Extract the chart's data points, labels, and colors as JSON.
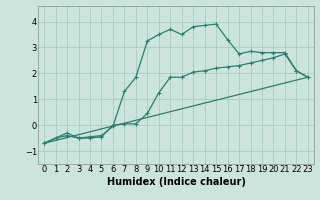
{
  "title": "",
  "xlabel": "Humidex (Indice chaleur)",
  "bg_color": "#cce5dc",
  "grid_color": "#b0cfc5",
  "line_color": "#2e7d6e",
  "xlim": [
    -0.5,
    23.5
  ],
  "ylim": [
    -1.5,
    4.6
  ],
  "xticks": [
    0,
    1,
    2,
    3,
    4,
    5,
    6,
    7,
    8,
    9,
    10,
    11,
    12,
    13,
    14,
    15,
    16,
    17,
    18,
    19,
    20,
    21,
    22,
    23
  ],
  "yticks": [
    -1,
    0,
    1,
    2,
    3,
    4
  ],
  "line1_x": [
    0,
    2,
    3,
    4,
    5,
    6,
    7,
    8,
    9,
    10,
    11,
    12,
    13,
    14,
    15,
    16,
    17,
    18,
    19,
    20,
    21,
    22,
    23
  ],
  "line1_y": [
    -0.7,
    -0.3,
    -0.5,
    -0.45,
    -0.4,
    -0.05,
    1.3,
    1.85,
    3.25,
    3.5,
    3.7,
    3.5,
    3.8,
    3.85,
    3.9,
    3.3,
    2.75,
    2.85,
    2.8,
    2.8,
    2.8,
    2.1,
    1.85
  ],
  "line2_x": [
    0,
    1,
    2,
    3,
    4,
    5,
    6,
    7,
    8,
    9,
    10,
    11,
    12,
    13,
    14,
    15,
    16,
    17,
    18,
    19,
    20,
    21,
    22,
    23
  ],
  "line2_y": [
    -0.7,
    -0.5,
    -0.4,
    -0.5,
    -0.5,
    -0.45,
    -0.0,
    0.05,
    0.05,
    0.45,
    1.25,
    1.85,
    1.85,
    2.05,
    2.1,
    2.2,
    2.25,
    2.3,
    2.4,
    2.5,
    2.6,
    2.75,
    2.1,
    1.85
  ],
  "line3_x": [
    0,
    23
  ],
  "line3_y": [
    -0.7,
    1.85
  ],
  "tick_fontsize": 6,
  "xlabel_fontsize": 7
}
